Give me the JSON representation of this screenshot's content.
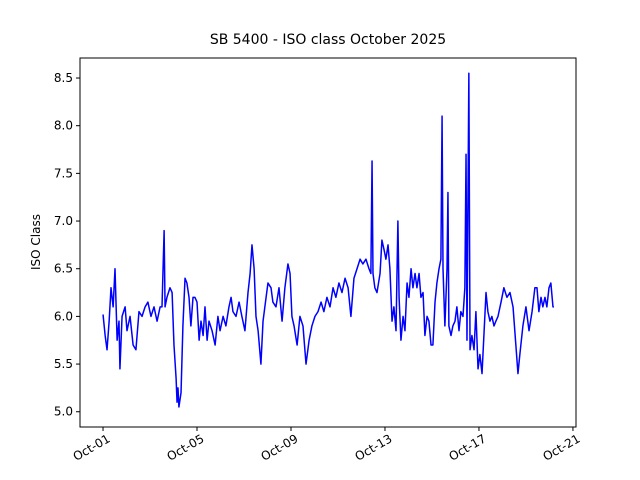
{
  "chart_data": {
    "type": "line",
    "title": "SB 5400 - ISO class October 2025",
    "y_label": "ISO Class",
    "xlim": [
      0.02,
      21.13
    ],
    "ylim": [
      4.84,
      8.71
    ],
    "xticks": [
      {
        "value": 1,
        "label": "Oct-01"
      },
      {
        "value": 5,
        "label": "Oct-05"
      },
      {
        "value": 9,
        "label": "Oct-09"
      },
      {
        "value": 13,
        "label": "Oct-13"
      },
      {
        "value": 17,
        "label": "Oct-17"
      },
      {
        "value": 21,
        "label": "Oct-21"
      }
    ],
    "yticks": [
      {
        "value": 5,
        "label": "5.0"
      },
      5.5,
      {
        "value": 6,
        "label": "6.0"
      },
      6.5,
      {
        "value": 7,
        "label": "7.0"
      },
      7.5,
      {
        "value": 8,
        "label": "8.0"
      },
      8.5
    ],
    "series": [
      {
        "color": "#0000ff",
        "x": [
          1.0,
          1.09,
          1.17,
          1.26,
          1.34,
          1.43,
          1.51,
          1.6,
          1.68,
          1.72,
          1.81,
          1.94,
          2.02,
          2.15,
          2.28,
          2.4,
          2.53,
          2.66,
          2.79,
          2.91,
          3.04,
          3.17,
          3.3,
          3.43,
          3.51,
          3.6,
          3.64,
          3.72,
          3.85,
          3.94,
          4.02,
          4.11,
          4.15,
          4.19,
          4.23,
          4.32,
          4.4,
          4.49,
          4.57,
          4.66,
          4.74,
          4.83,
          4.91,
          5.0,
          5.09,
          5.17,
          5.26,
          5.34,
          5.43,
          5.51,
          5.64,
          5.77,
          5.89,
          5.98,
          6.11,
          6.23,
          6.36,
          6.45,
          6.53,
          6.66,
          6.79,
          6.91,
          7.04,
          7.17,
          7.26,
          7.34,
          7.43,
          7.51,
          7.6,
          7.72,
          7.81,
          7.94,
          8.02,
          8.15,
          8.23,
          8.36,
          8.49,
          8.62,
          8.74,
          8.87,
          8.96,
          9.04,
          9.13,
          9.26,
          9.38,
          9.51,
          9.64,
          9.77,
          9.89,
          10.02,
          10.15,
          10.28,
          10.4,
          10.53,
          10.66,
          10.79,
          10.91,
          11.04,
          11.17,
          11.3,
          11.43,
          11.55,
          11.68,
          11.81,
          11.94,
          12.06,
          12.19,
          12.32,
          12.4,
          12.45,
          12.49,
          12.57,
          12.66,
          12.79,
          12.87,
          12.96,
          13.04,
          13.13,
          13.21,
          13.3,
          13.38,
          13.47,
          13.55,
          13.6,
          13.68,
          13.77,
          13.85,
          13.94,
          14.02,
          14.11,
          14.19,
          14.28,
          14.36,
          14.45,
          14.53,
          14.62,
          14.7,
          14.79,
          14.87,
          14.96,
          15.04,
          15.13,
          15.21,
          15.3,
          15.38,
          15.43,
          15.47,
          15.55,
          15.64,
          15.68,
          15.72,
          15.81,
          15.89,
          15.98,
          16.06,
          16.15,
          16.23,
          16.32,
          16.4,
          16.45,
          16.49,
          16.57,
          16.62,
          16.7,
          16.79,
          16.87,
          16.96,
          17.04,
          17.13,
          17.21,
          17.3,
          17.38,
          17.47,
          17.55,
          17.64,
          17.72,
          17.81,
          17.94,
          18.06,
          18.19,
          18.32,
          18.45,
          18.57,
          18.66,
          18.74,
          18.87,
          19.0,
          19.13,
          19.26,
          19.38,
          19.47,
          19.55,
          19.64,
          19.72,
          19.81,
          19.89,
          19.98,
          20.06,
          20.15,
          20.19
        ],
        "values": [
          6.02,
          5.8,
          5.65,
          5.95,
          6.3,
          6.1,
          6.5,
          5.75,
          5.95,
          5.45,
          6.0,
          6.1,
          5.85,
          6.0,
          5.7,
          5.65,
          6.05,
          6.0,
          6.1,
          6.15,
          6.0,
          6.1,
          5.95,
          6.1,
          6.1,
          6.9,
          6.1,
          6.2,
          6.3,
          6.25,
          5.7,
          5.35,
          5.1,
          5.25,
          5.05,
          5.2,
          5.9,
          6.4,
          6.35,
          6.2,
          5.9,
          6.2,
          6.2,
          6.15,
          5.75,
          5.95,
          5.8,
          6.1,
          5.75,
          5.95,
          5.85,
          5.7,
          6.0,
          5.85,
          6.0,
          5.9,
          6.1,
          6.2,
          6.05,
          6.0,
          6.15,
          6.0,
          5.85,
          6.25,
          6.45,
          6.75,
          6.5,
          6.0,
          5.85,
          5.5,
          5.95,
          6.2,
          6.35,
          6.3,
          6.15,
          6.1,
          6.3,
          5.95,
          6.3,
          6.55,
          6.45,
          6.0,
          5.9,
          5.7,
          6.0,
          5.9,
          5.5,
          5.75,
          5.9,
          6.0,
          6.05,
          6.15,
          6.05,
          6.2,
          6.1,
          6.3,
          6.2,
          6.35,
          6.25,
          6.4,
          6.3,
          6.0,
          6.4,
          6.5,
          6.6,
          6.55,
          6.6,
          6.5,
          6.45,
          7.63,
          6.45,
          6.3,
          6.25,
          6.45,
          6.8,
          6.7,
          6.6,
          6.75,
          6.5,
          5.95,
          6.1,
          5.85,
          7.0,
          6.2,
          5.75,
          6.0,
          5.85,
          6.35,
          6.2,
          6.5,
          6.3,
          6.45,
          6.3,
          6.45,
          6.2,
          6.25,
          5.8,
          6.0,
          5.95,
          5.7,
          5.7,
          6.15,
          6.35,
          6.5,
          6.6,
          8.1,
          6.5,
          5.9,
          6.5,
          7.3,
          5.9,
          5.8,
          5.9,
          5.95,
          6.1,
          5.85,
          6.05,
          6.0,
          6.3,
          7.7,
          5.75,
          8.55,
          5.65,
          5.8,
          5.65,
          6.05,
          5.45,
          5.6,
          5.4,
          5.8,
          6.25,
          6.05,
          5.95,
          6.0,
          5.9,
          5.95,
          6.0,
          6.15,
          6.3,
          6.2,
          6.25,
          6.1,
          5.7,
          5.4,
          5.6,
          5.9,
          6.1,
          5.85,
          6.05,
          6.3,
          6.3,
          6.05,
          6.2,
          6.1,
          6.2,
          6.1,
          6.3,
          6.35,
          6.1,
          6.1
        ]
      }
    ]
  }
}
